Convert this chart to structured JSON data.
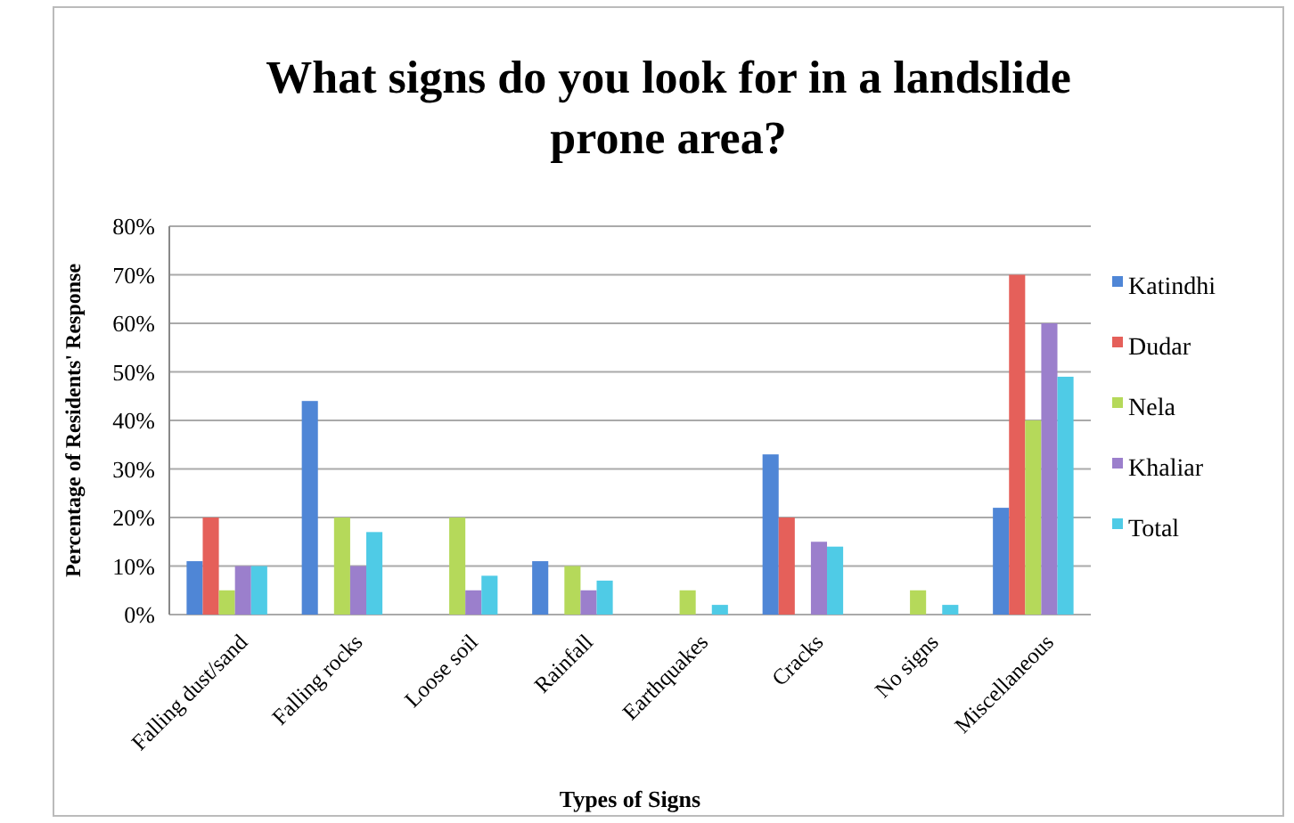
{
  "chart_data": {
    "type": "bar",
    "title": "What signs do you look for in a landslide prone area?",
    "xlabel": "Types of Signs",
    "ylabel": "Percentage of Residents' Response",
    "categories": [
      "Falling dust/sand",
      "Falling rocks",
      "Loose soil",
      "Rainfall",
      "Earthquakes",
      "Cracks",
      "No signs",
      "Miscellaneous"
    ],
    "series": [
      {
        "name": "Katindhi",
        "color": "#4f86d6",
        "values": [
          11,
          44,
          0,
          11,
          0,
          33,
          0,
          22
        ]
      },
      {
        "name": "Dudar",
        "color": "#e5605a",
        "values": [
          20,
          0,
          0,
          0,
          0,
          20,
          0,
          70
        ]
      },
      {
        "name": "Nela",
        "color": "#b5d95a",
        "values": [
          5,
          20,
          20,
          10,
          5,
          0,
          5,
          40
        ]
      },
      {
        "name": "Khaliar",
        "color": "#9b7fcc",
        "values": [
          10,
          10,
          5,
          5,
          0,
          15,
          0,
          60
        ]
      },
      {
        "name": "Total",
        "color": "#4fcbe6",
        "values": [
          10,
          17,
          8,
          7,
          2,
          14,
          2,
          49
        ]
      }
    ],
    "ylim": [
      0,
      80
    ],
    "yticks": [
      {
        "value": 0,
        "label": "0%"
      },
      {
        "value": 10,
        "label": "10%"
      },
      {
        "value": 20,
        "label": "20%"
      },
      {
        "value": 30,
        "label": "30%"
      },
      {
        "value": 40,
        "label": "40%"
      },
      {
        "value": 50,
        "label": "50%"
      },
      {
        "value": 60,
        "label": "60%"
      },
      {
        "value": 70,
        "label": "70%"
      },
      {
        "value": 80,
        "label": "80%"
      }
    ],
    "grid": "y",
    "legend": "right"
  }
}
